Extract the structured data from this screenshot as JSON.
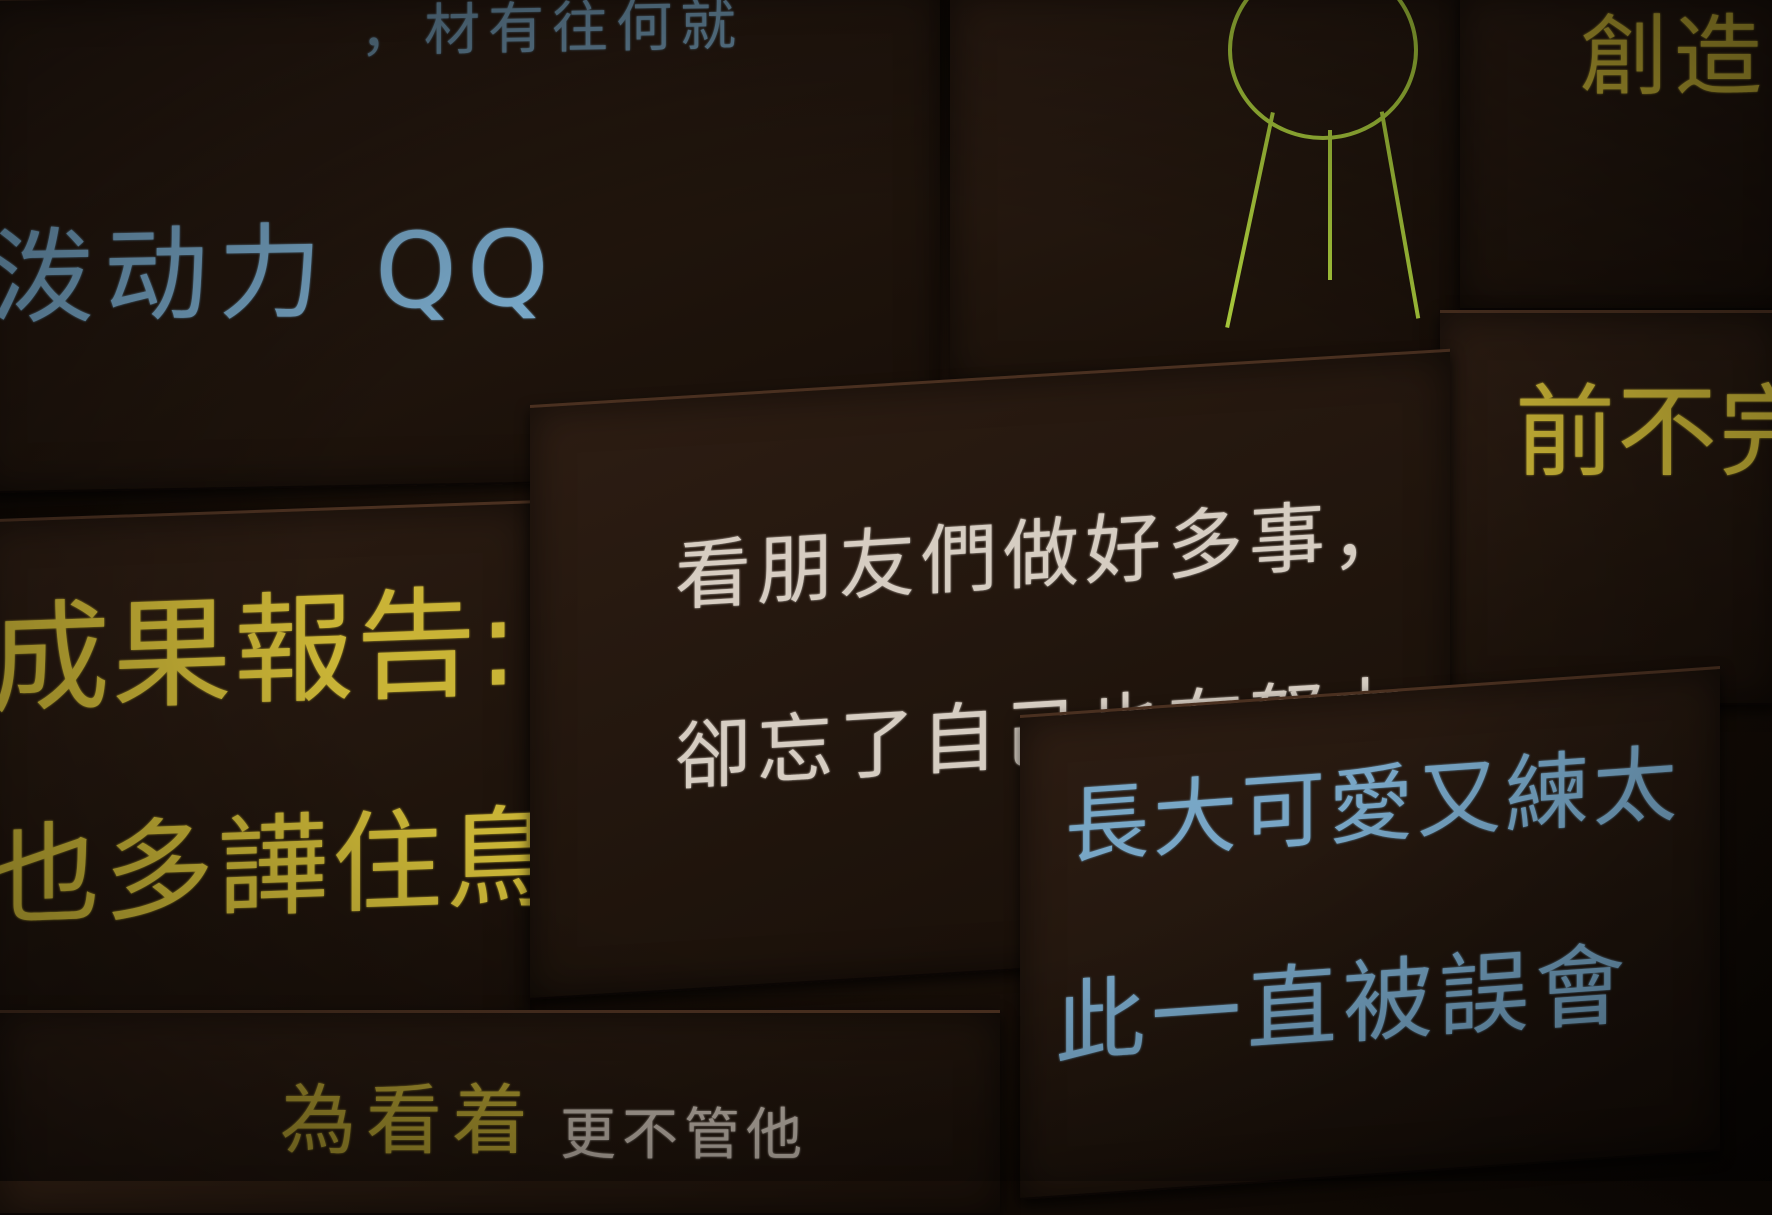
{
  "boxes": {
    "top_left": {
      "line1": "，材有往何就",
      "line2": "泼动力 QQ"
    },
    "top_right": {
      "line1": "創造"
    },
    "right_middle": {
      "line1": "前不完Q"
    },
    "center": {
      "line1": "看朋友們做好多事，",
      "line2": "卻忘了自己也在努力"
    },
    "left_middle": {
      "line1": "成果報告:",
      "line2": "也多譁住鳥"
    },
    "bottom_right": {
      "line1": "長大可愛又練太",
      "line2": "此一直被誤會"
    },
    "bottom_left": {
      "line1": "為看着",
      "line2": "更不管他"
    }
  },
  "colors": {
    "blue_chalk": "#7fb3d6",
    "yellow_chalk": "#d8c23a",
    "white_chalk": "#e6ddd2",
    "green_chalk": "#a4c43a",
    "cardboard": "#2d1d13"
  },
  "icons": {
    "stick_figure": "green-chalk-stick-figure-icon"
  }
}
